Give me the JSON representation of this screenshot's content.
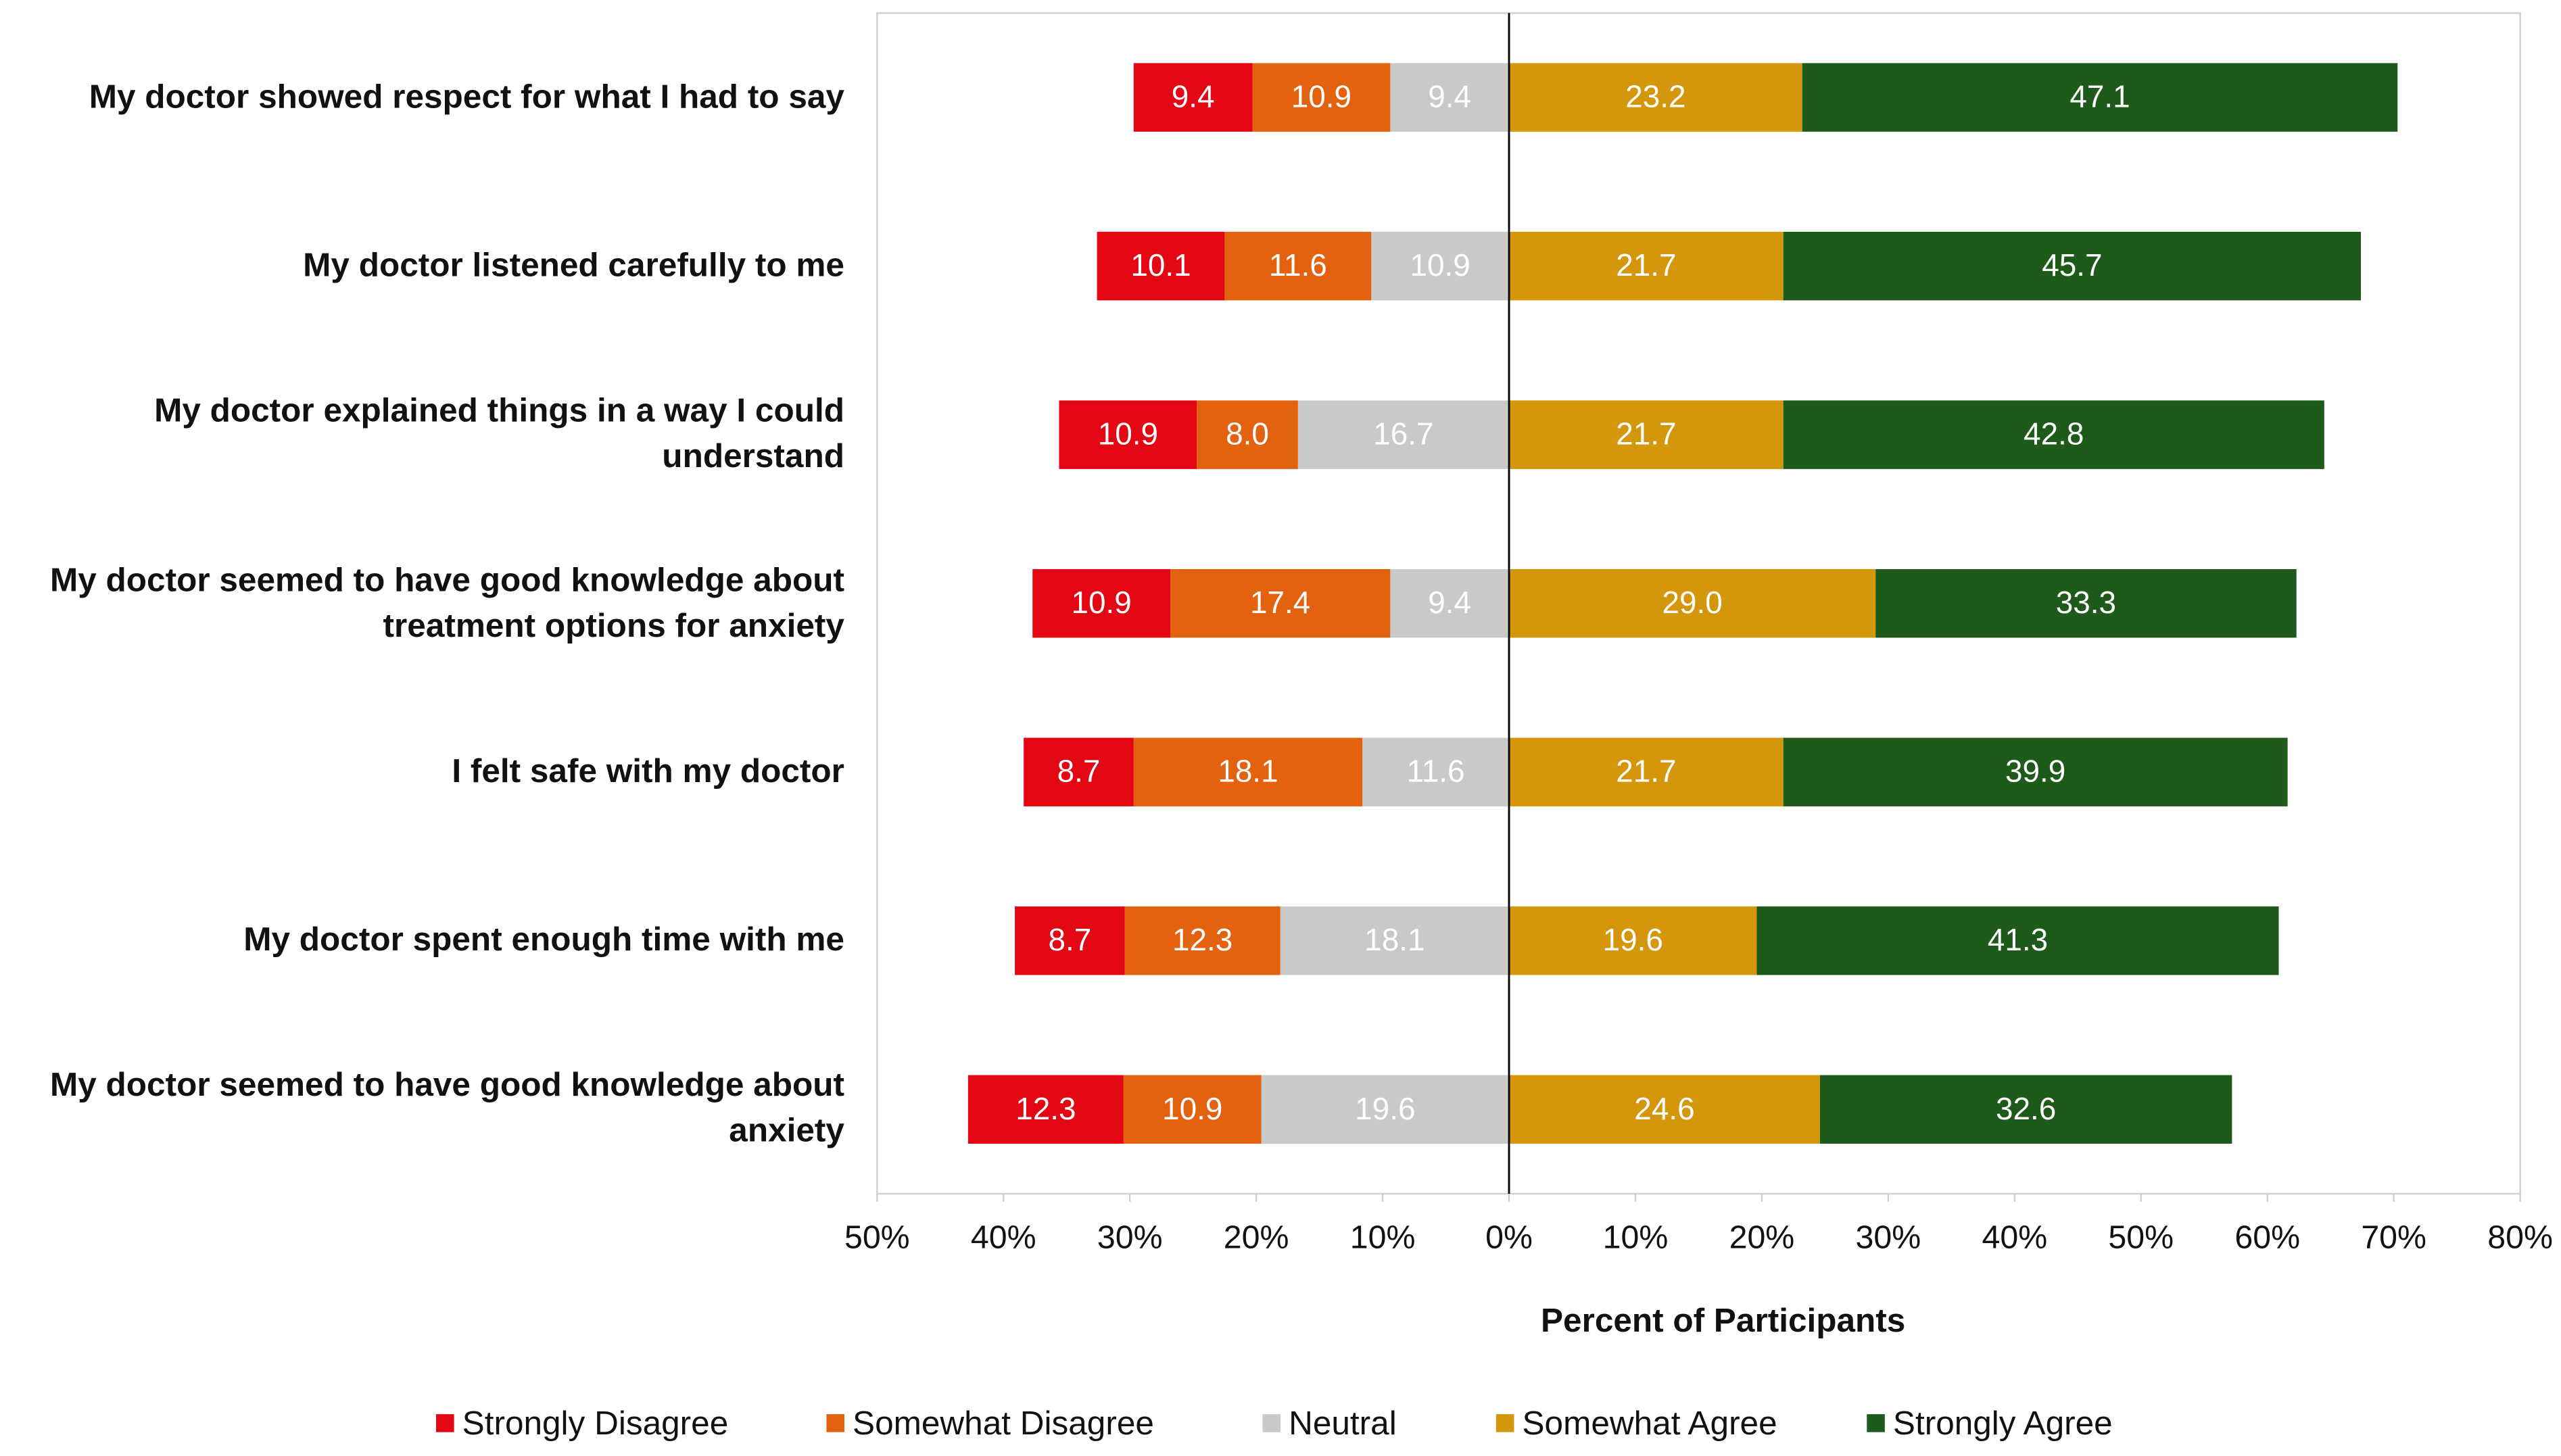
{
  "chart_data": {
    "type": "diverging-bar",
    "x_label": "Percent of Participants",
    "categories": [
      "My doctor showed respect for what I had to say",
      "My doctor listened carefully to me",
      "My doctor explained things in a way I could understand",
      "My doctor seemed to have good knowledge about treatment options for anxiety",
      "I felt safe with my doctor",
      "My doctor spent enough time with me",
      "My doctor seemed to have good knowledge about anxiety"
    ],
    "series": [
      {
        "name": "Strongly Disagree",
        "color": "#e30613",
        "values": [
          9.4,
          10.1,
          10.9,
          10.9,
          8.7,
          8.7,
          12.3
        ],
        "value_labels": [
          "9.4",
          "10.1",
          "10.9",
          "10.9",
          "8.7",
          "8.7",
          "12.3"
        ]
      },
      {
        "name": "Somewhat Disagree",
        "color": "#e2620f",
        "values": [
          10.9,
          11.6,
          8.0,
          17.4,
          18.1,
          12.3,
          10.9
        ],
        "value_labels": [
          "10.9",
          "11.6",
          "8.0",
          "17.4",
          "18.1",
          "12.3",
          "10.9"
        ]
      },
      {
        "name": "Neutral",
        "color": "#c9c9c9",
        "values": [
          9.4,
          10.9,
          16.7,
          9.4,
          11.6,
          18.1,
          19.6
        ],
        "value_labels": [
          "9.4",
          "10.9",
          "16.7",
          "9.4",
          "11.6",
          "18.1",
          "19.6"
        ]
      },
      {
        "name": "Somewhat Agree",
        "color": "#d4960a",
        "values": [
          23.2,
          21.7,
          21.7,
          29.0,
          21.7,
          19.6,
          24.6
        ],
        "value_labels": [
          "23.2",
          "21.7",
          "21.7",
          "29.0",
          "21.7",
          "19.6",
          "24.6"
        ]
      },
      {
        "name": "Strongly Agree",
        "color": "#1e5b1a",
        "values": [
          47.1,
          45.7,
          42.8,
          33.3,
          39.9,
          41.3,
          32.6
        ],
        "value_labels": [
          "47.1",
          "45.7",
          "42.8",
          "33.3",
          "39.9",
          "41.3",
          "32.6"
        ]
      }
    ],
    "xlim": [
      -50,
      80
    ],
    "xticks": [
      {
        "value": -50,
        "label": "50%"
      },
      {
        "value": -40,
        "label": "40%"
      },
      {
        "value": -30,
        "label": "30%"
      },
      {
        "value": -20,
        "label": "20%"
      },
      {
        "value": -10,
        "label": "10%"
      },
      {
        "value": 0,
        "label": "0%"
      },
      {
        "value": 10,
        "label": "10%"
      },
      {
        "value": 20,
        "label": "20%"
      },
      {
        "value": 30,
        "label": "30%"
      },
      {
        "value": 40,
        "label": "40%"
      },
      {
        "value": 50,
        "label": "50%"
      },
      {
        "value": 60,
        "label": "60%"
      },
      {
        "value": 70,
        "label": "70%"
      },
      {
        "value": 80,
        "label": "80%"
      }
    ],
    "legend": "bottom"
  }
}
